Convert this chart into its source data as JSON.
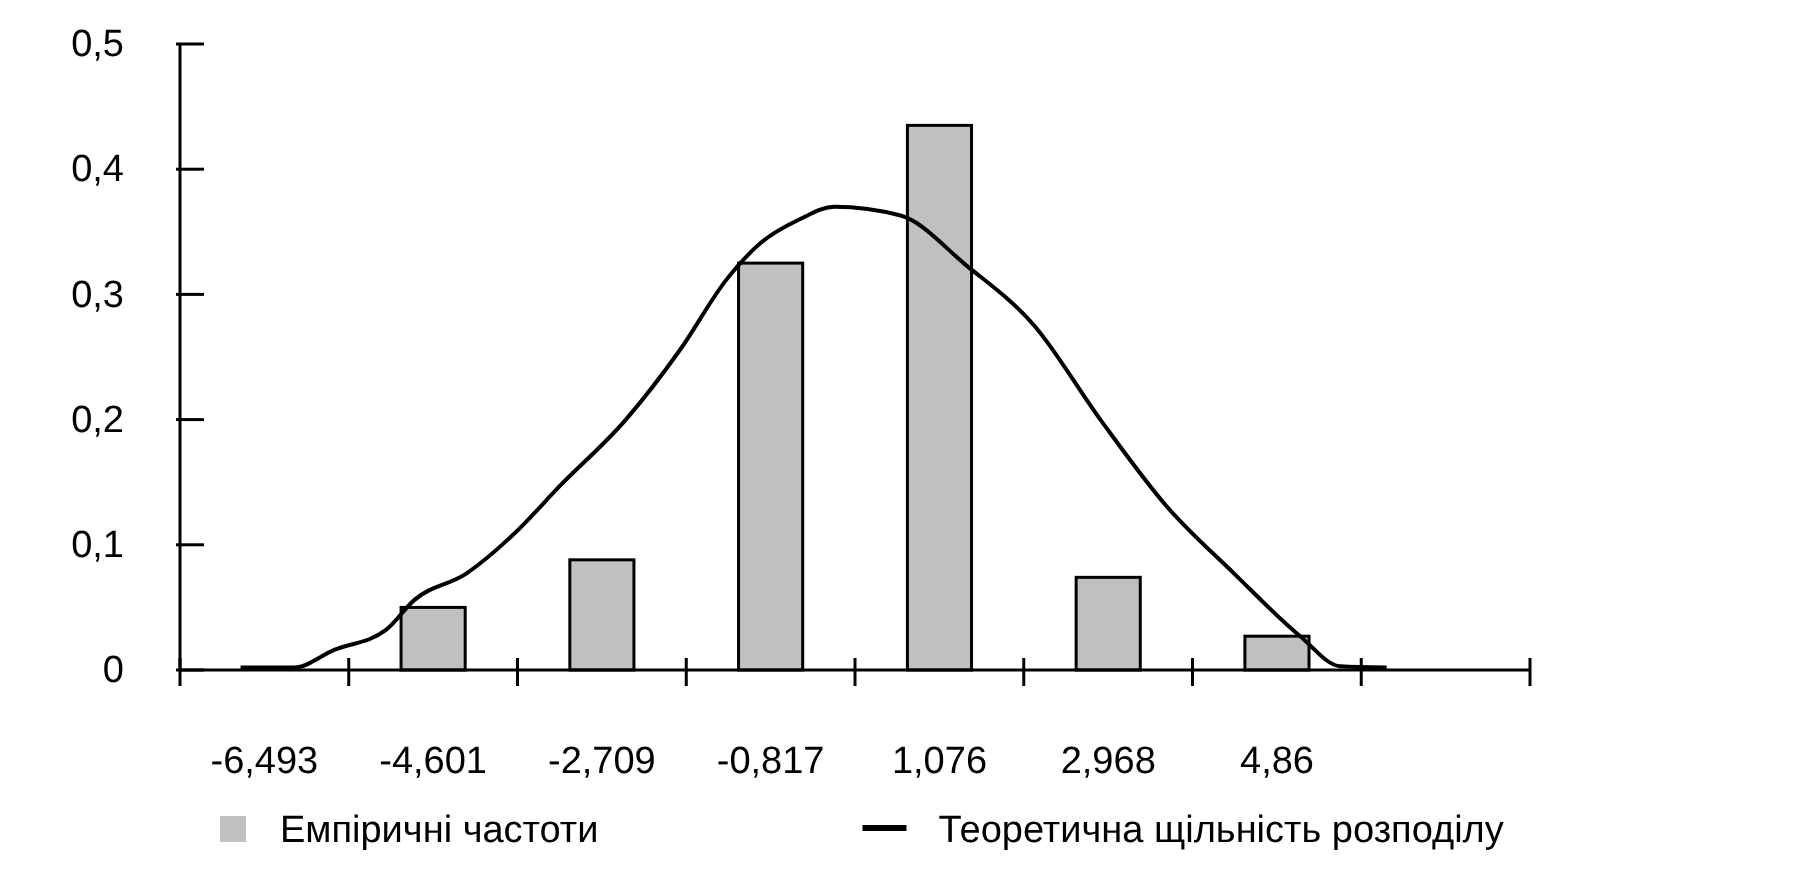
{
  "chart_data": {
    "type": "bar",
    "grid": false,
    "legend": "bottom",
    "xlim": [
      -7.439,
      7.697
    ],
    "ylim": [
      0,
      0.5
    ],
    "xticks": [
      {
        "value": -7.439,
        "label": null
      },
      {
        "value": -6.493,
        "label": "-6,493"
      },
      {
        "value": -5.547,
        "label": null
      },
      {
        "value": -4.601,
        "label": "-4,601"
      },
      {
        "value": -3.655,
        "label": null
      },
      {
        "value": -2.709,
        "label": "-2,709"
      },
      {
        "value": -1.763,
        "label": null
      },
      {
        "value": -0.817,
        "label": "-0,817"
      },
      {
        "value": 0.129,
        "label": null
      },
      {
        "value": 1.076,
        "label": "1,076"
      },
      {
        "value": 2.021,
        "label": null
      },
      {
        "value": 2.968,
        "label": "2,968"
      },
      {
        "value": 3.913,
        "label": null
      },
      {
        "value": 4.86,
        "label": "4,86"
      },
      {
        "value": 5.805,
        "label": null
      },
      {
        "value": 7.697,
        "label": null
      }
    ],
    "yticks": [
      0,
      {
        "value": 0.1,
        "label": "0,1"
      },
      {
        "value": 0.2,
        "label": "0,2"
      },
      {
        "value": 0.3,
        "label": "0,3"
      },
      {
        "value": 0.4,
        "label": "0,4"
      },
      {
        "value": 0.5,
        "label": "0,5"
      }
    ],
    "series": [
      {
        "name": "Емпіричні частоти",
        "color": "#c0c0c0",
        "x": [
          -4.601,
          -2.709,
          -0.817,
          1.076,
          2.968,
          4.86
        ],
        "values": [
          0.05,
          0.088,
          0.325,
          0.435,
          0.074,
          0.027
        ]
      },
      {
        "name": "Теоретична щільність розподілу",
        "type": "line",
        "color": "#000000",
        "x": [
          -6.76,
          -6.16,
          -5.71,
          -5.13,
          -4.81,
          -4.23,
          -3.69,
          -3.18,
          -2.44,
          -1.83,
          -1.31,
          -0.93,
          -0.49,
          -0.1,
          0.64,
          1.38,
          2.14,
          2.88,
          3.62,
          4.38,
          5.12,
          5.57,
          6.09
        ],
        "values": [
          0.002,
          0.002,
          0.016,
          0.032,
          0.056,
          0.077,
          0.109,
          0.147,
          0.2,
          0.256,
          0.312,
          0.341,
          0.36,
          0.37,
          0.363,
          0.323,
          0.275,
          0.2,
          0.131,
          0.077,
          0.027,
          0.003,
          0.002
        ]
      }
    ]
  }
}
